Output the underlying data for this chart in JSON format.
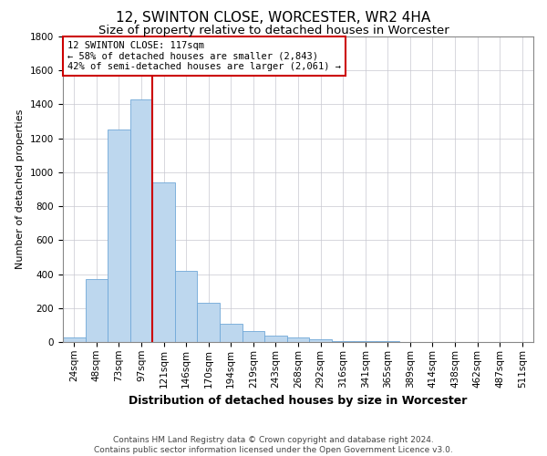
{
  "title": "12, SWINTON CLOSE, WORCESTER, WR2 4HA",
  "subtitle": "Size of property relative to detached houses in Worcester",
  "xlabel": "Distribution of detached houses by size in Worcester",
  "ylabel": "Number of detached properties",
  "annotation_text": "12 SWINTON CLOSE: 117sqm\n← 58% of detached houses are smaller (2,843)\n42% of semi-detached houses are larger (2,061) →",
  "categories": [
    "24sqm",
    "48sqm",
    "73sqm",
    "97sqm",
    "121sqm",
    "146sqm",
    "170sqm",
    "194sqm",
    "219sqm",
    "243sqm",
    "268sqm",
    "292sqm",
    "316sqm",
    "341sqm",
    "365sqm",
    "389sqm",
    "414sqm",
    "438sqm",
    "462sqm",
    "487sqm",
    "511sqm"
  ],
  "values": [
    25,
    370,
    1250,
    1430,
    940,
    420,
    230,
    110,
    65,
    40,
    25,
    15,
    8,
    4,
    3,
    2,
    1,
    1,
    1,
    1,
    1
  ],
  "bar_color": "#bdd7ee",
  "bar_edge_color": "#70a8d8",
  "vline_color": "#cc0000",
  "vline_index": 4,
  "grid_color": "#c8c8d0",
  "ylim": [
    0,
    1800
  ],
  "yticks": [
    0,
    200,
    400,
    600,
    800,
    1000,
    1200,
    1400,
    1600,
    1800
  ],
  "annotation_box_color": "#cc0000",
  "footer_line1": "Contains HM Land Registry data © Crown copyright and database right 2024.",
  "footer_line2": "Contains public sector information licensed under the Open Government Licence v3.0.",
  "title_fontsize": 11,
  "subtitle_fontsize": 9.5,
  "xlabel_fontsize": 9,
  "ylabel_fontsize": 8,
  "tick_fontsize": 7.5,
  "annotation_fontsize": 7.5,
  "footer_fontsize": 6.5
}
